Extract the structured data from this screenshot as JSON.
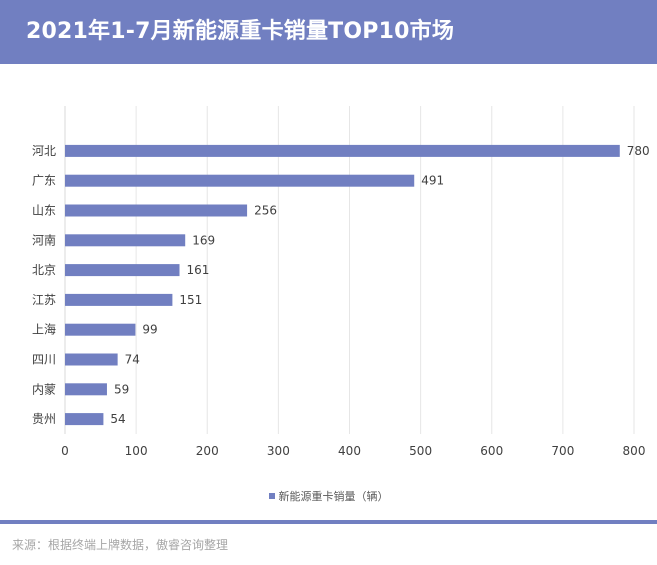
{
  "header": {
    "title": "2021年1-7月新能源重卡销量TOP10市场"
  },
  "source": "来源：根据终端上牌数据，傲睿咨询整理",
  "colors": {
    "accent": "#717fc1",
    "grid": "#e6e6e6",
    "text": "#404040"
  },
  "chart_data": {
    "type": "bar",
    "orientation": "horizontal",
    "title": "2021年1-7月新能源重卡销量TOP10市场",
    "categories": [
      "河北",
      "广东",
      "山东",
      "河南",
      "北京",
      "江苏",
      "上海",
      "四川",
      "内蒙",
      "贵州"
    ],
    "series": [
      {
        "name": "新能源重卡销量（辆）",
        "values": [
          780,
          491,
          256,
          169,
          161,
          151,
          99,
          74,
          59,
          54
        ]
      }
    ],
    "xlim": [
      0,
      800
    ],
    "xticks": [
      0,
      100,
      200,
      300,
      400,
      500,
      600,
      700,
      800
    ],
    "grid": true,
    "legend_position": "bottom"
  }
}
